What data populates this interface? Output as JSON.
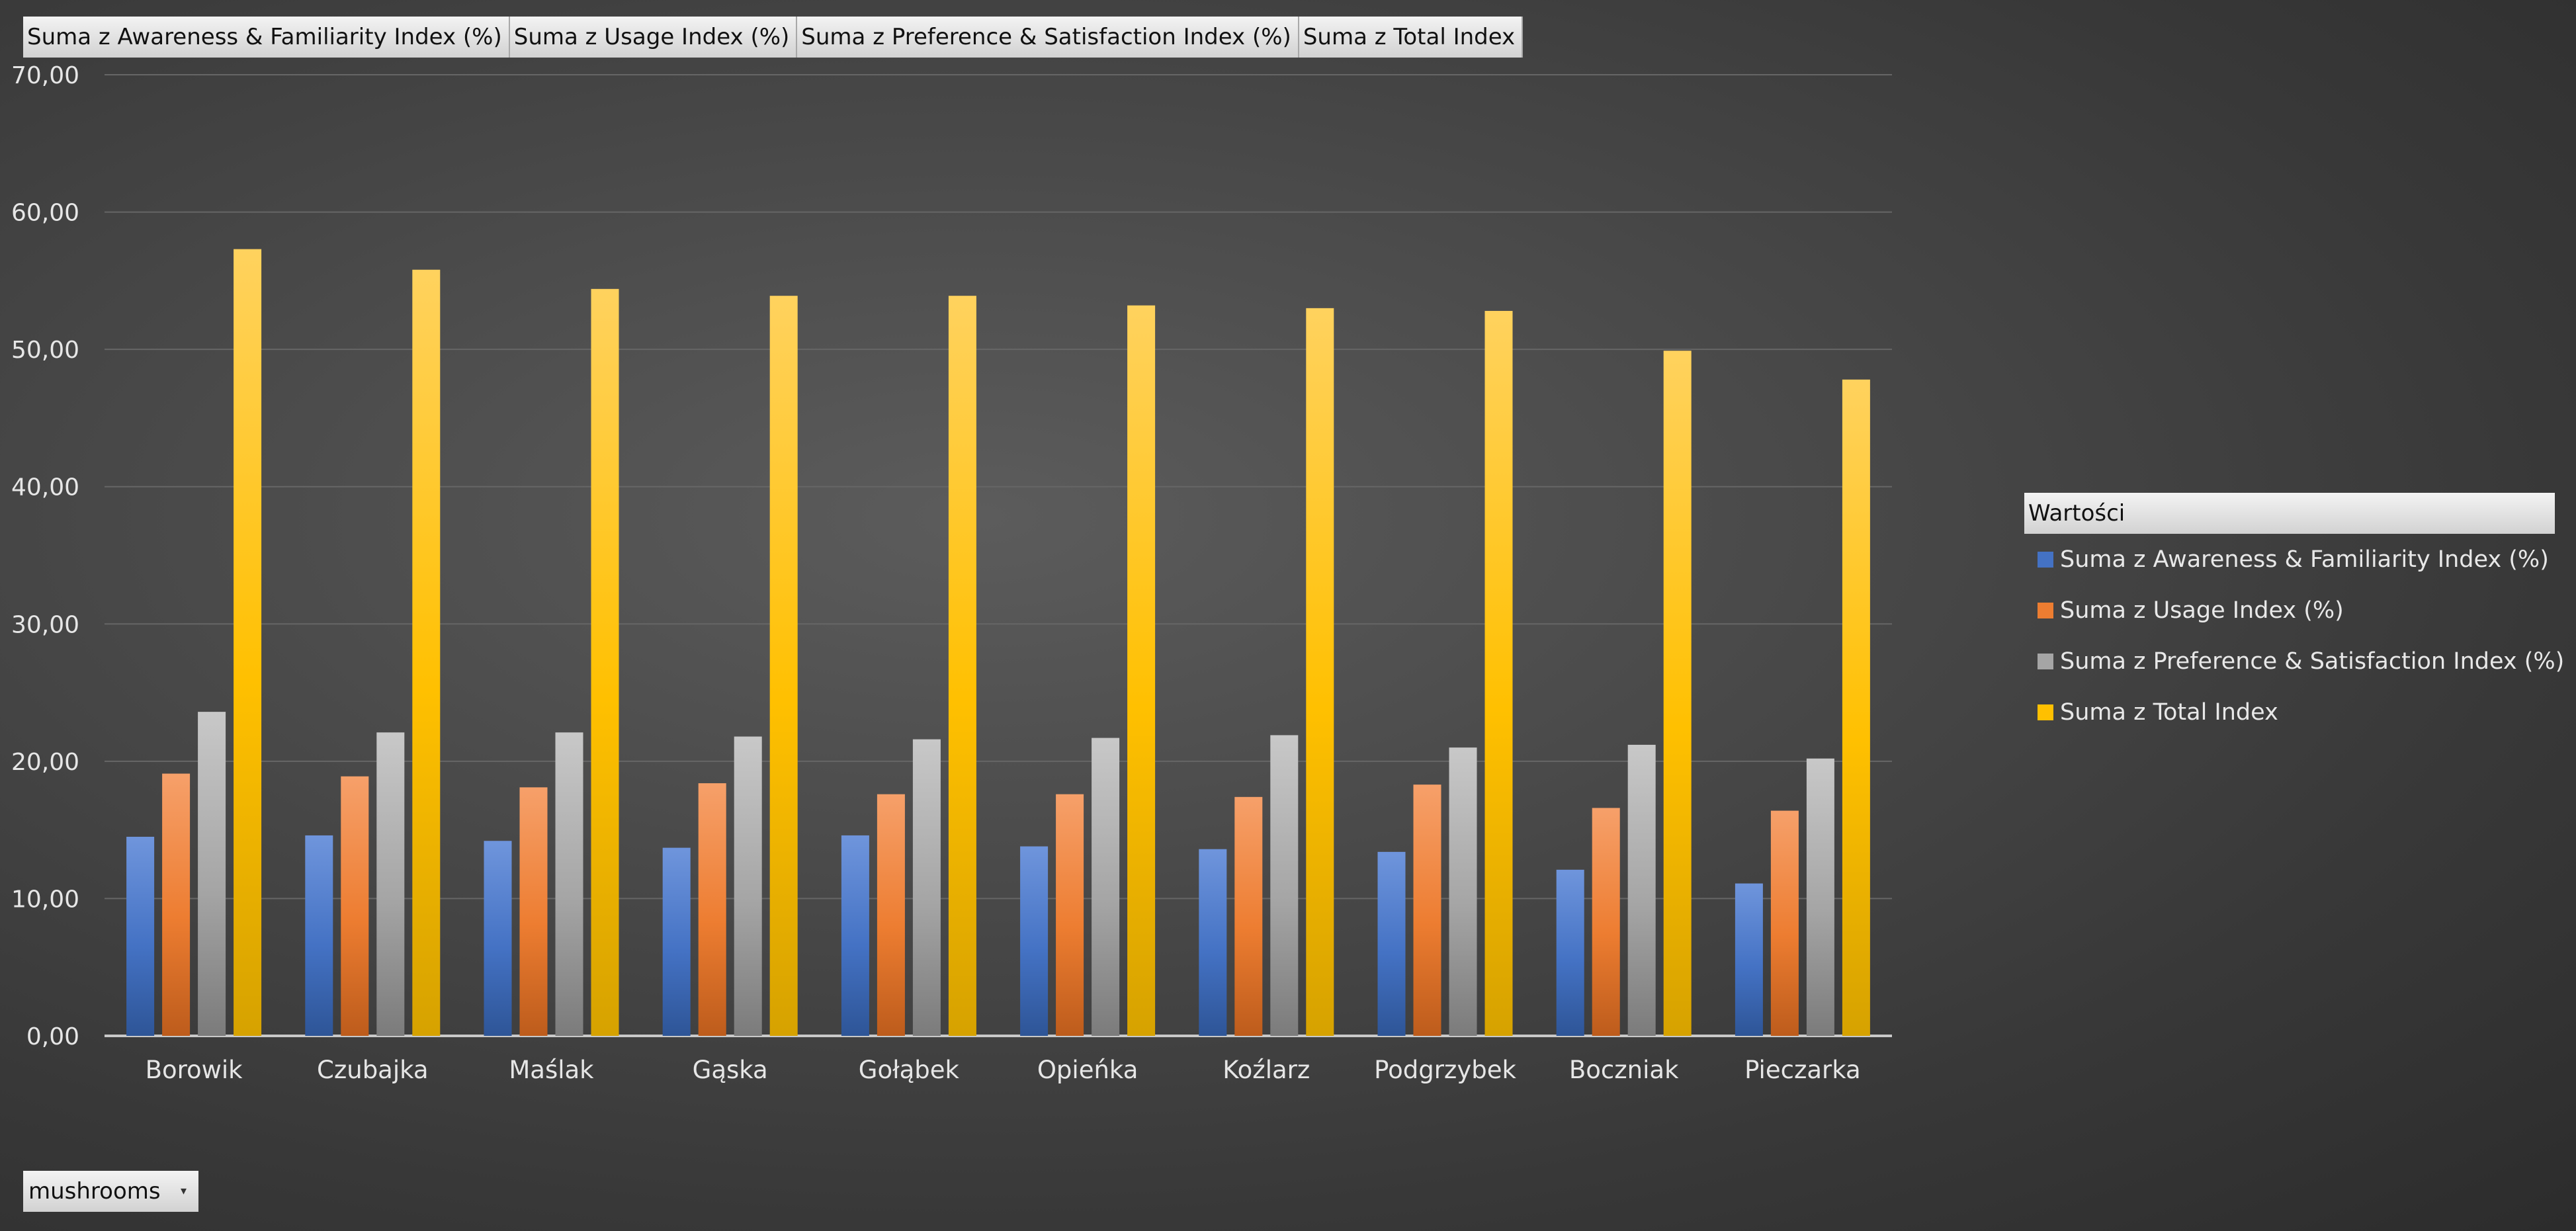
{
  "field_buttons": [
    "Suma z Awareness & Familiarity Index (%)",
    "Suma z Usage Index (%)",
    "Suma z  Preference & Satisfaction Index (%)",
    "Suma z Total Index"
  ],
  "legend": {
    "title": "Wartości",
    "items": [
      "Suma z Awareness & Familiarity Index (%)",
      "Suma z Usage Index (%)",
      "Suma z  Preference & Satisfaction Index (%)",
      "Suma z Total Index"
    ]
  },
  "filter": {
    "label": "mushrooms",
    "icon": "dropdown-arrow-icon"
  },
  "chart_data": {
    "type": "bar",
    "categories": [
      "Borowik",
      "Czubajka",
      "Maślak",
      "Gąska",
      "Gołąbek",
      "Opieńka",
      "Koźlarz",
      "Podgrzybek",
      "Boczniak",
      "Pieczarka"
    ],
    "series": [
      {
        "name": "Suma z Awareness & Familiarity Index (%)",
        "color": "#4472c4",
        "values": [
          14.5,
          14.6,
          14.2,
          13.7,
          14.6,
          13.8,
          13.6,
          13.4,
          12.1,
          11.1
        ]
      },
      {
        "name": "Suma z Usage Index (%)",
        "color": "#ed7d31",
        "values": [
          19.1,
          18.9,
          18.1,
          18.4,
          17.6,
          17.6,
          17.4,
          18.3,
          16.6,
          16.4
        ]
      },
      {
        "name": "Suma z  Preference & Satisfaction Index (%)",
        "color": "#a5a5a5",
        "values": [
          23.6,
          22.1,
          22.1,
          21.8,
          21.6,
          21.7,
          21.9,
          21.0,
          21.2,
          20.2
        ]
      },
      {
        "name": "Suma z Total Index",
        "color": "#ffc000",
        "values": [
          57.3,
          55.8,
          54.4,
          53.9,
          53.9,
          53.2,
          53.0,
          52.8,
          49.9,
          47.8
        ]
      }
    ],
    "y_ticks": [
      "0,00",
      "10,00",
      "20,00",
      "30,00",
      "40,00",
      "50,00",
      "60,00",
      "70,00"
    ],
    "ylim": [
      0,
      70
    ],
    "grid": true,
    "legend_position": "right"
  }
}
